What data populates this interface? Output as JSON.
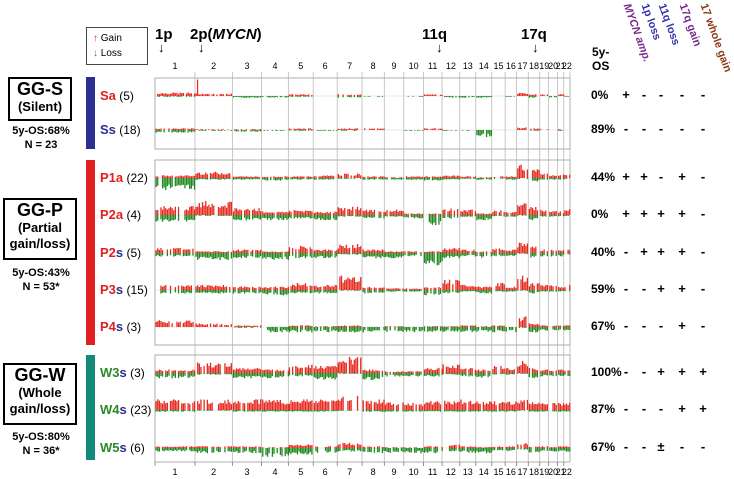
{
  "legend": {
    "gain_label": "Gain",
    "loss_label": "Loss",
    "gain_arrow": "↑",
    "loss_arrow": "↓"
  },
  "top_markers": [
    {
      "label": "1p",
      "arrow": "↓"
    },
    {
      "label": "2p(MYCN)",
      "arrow": "↓"
    },
    {
      "label": "11q",
      "arrow": "↓"
    },
    {
      "label": "17q",
      "arrow": "↓"
    }
  ],
  "os_header": "5y-\nOS",
  "feature_headers": [
    {
      "label": "MYCN amp.",
      "color": "#7a2a90"
    },
    {
      "label": "1p loss",
      "color": "#3333aa"
    },
    {
      "label": "11q loss",
      "color": "#3333aa"
    },
    {
      "label": "17q gain",
      "color": "#7a2a90"
    },
    {
      "label": "17 whole gain",
      "color": "#8b3a1a"
    }
  ],
  "chromosomes_top": [
    "1",
    "2",
    "3",
    "4",
    "5",
    "6",
    "7",
    "8",
    "9",
    "10",
    "11",
    "12",
    "13",
    "14",
    "15",
    "16",
    "17",
    "18",
    "19",
    "20",
    "21",
    "22"
  ],
  "chromosomes_bottom": [
    "1",
    "2",
    "3",
    "4",
    "5",
    "6",
    "7",
    "8",
    "9",
    "10",
    "11",
    "12",
    "13",
    "14",
    "15",
    "16",
    "17",
    "18",
    "19",
    "20",
    "21",
    "22"
  ],
  "groups": [
    {
      "name": "GG-S",
      "desc": "(Silent)",
      "stat1": "5y-OS:68%",
      "stat2": "N = 23",
      "bar_color": "#2b2f8f",
      "rows": [
        {
          "label": "Sa",
          "label_color": "#e02020",
          "suffix": "",
          "suffix_color": "#2b2f8f",
          "n": "(5)",
          "os": "0%",
          "features": [
            "+",
            "-",
            "-",
            "-",
            "-"
          ]
        },
        {
          "label": "Ss",
          "label_color": "#2b2f8f",
          "suffix": "",
          "suffix_color": "#2b2f8f",
          "n": "(18)",
          "os": "89%",
          "features": [
            "-",
            "-",
            "-",
            "-",
            "-"
          ]
        }
      ]
    },
    {
      "name": "GG-P",
      "desc": "(Partial\ngain/loss)",
      "stat1": "5y-OS:43%",
      "stat2": "N = 53*",
      "bar_color": "#e02020",
      "rows": [
        {
          "label": "P1a",
          "label_color": "#e02020",
          "suffix": "",
          "suffix_color": "#e02020",
          "n": "(22)",
          "os": "44%",
          "features": [
            "+",
            "+",
            "-",
            "+",
            "-"
          ]
        },
        {
          "label": "P2a",
          "label_color": "#e02020",
          "suffix": "",
          "suffix_color": "#e02020",
          "n": "(4)",
          "os": "0%",
          "features": [
            "+",
            "+",
            "+",
            "+",
            "-"
          ]
        },
        {
          "label": "P2",
          "label_color": "#e02020",
          "suffix": "s",
          "suffix_color": "#2b2f8f",
          "n": "(5)",
          "os": "40%",
          "features": [
            "-",
            "+",
            "+",
            "+",
            "-"
          ]
        },
        {
          "label": "P3",
          "label_color": "#e02020",
          "suffix": "s",
          "suffix_color": "#2b2f8f",
          "n": "(15)",
          "os": "59%",
          "features": [
            "-",
            "-",
            "+",
            "+",
            "-"
          ]
        },
        {
          "label": "P4",
          "label_color": "#e02020",
          "suffix": "s",
          "suffix_color": "#2b2f8f",
          "n": "(3)",
          "os": "67%",
          "features": [
            "-",
            "-",
            "-",
            "+",
            "-"
          ]
        }
      ]
    },
    {
      "name": "GG-W",
      "desc": "(Whole\ngain/loss)",
      "stat1": "5y-OS:80%",
      "stat2": "N = 36*",
      "bar_color": "#138a7a",
      "rows": [
        {
          "label": "W3",
          "label_color": "#2a8a2a",
          "suffix": "s",
          "suffix_color": "#2b2f8f",
          "n": "(3)",
          "os": "100%",
          "features": [
            "-",
            "-",
            "+",
            "+",
            "+"
          ]
        },
        {
          "label": "W4",
          "label_color": "#2a8a2a",
          "suffix": "s",
          "suffix_color": "#2b2f8f",
          "n": "(23)",
          "os": "87%",
          "features": [
            "-",
            "-",
            "-",
            "+",
            "+"
          ]
        },
        {
          "label": "W5",
          "label_color": "#2a8a2a",
          "suffix": "s",
          "suffix_color": "#2b2f8f",
          "n": "(6)",
          "os": "67%",
          "features": [
            "-",
            "-",
            "±",
            "-",
            "-"
          ]
        }
      ]
    }
  ],
  "colors": {
    "gain": "#e8291f",
    "loss": "#1f8a1f",
    "grid": "#b0b0b0"
  }
}
